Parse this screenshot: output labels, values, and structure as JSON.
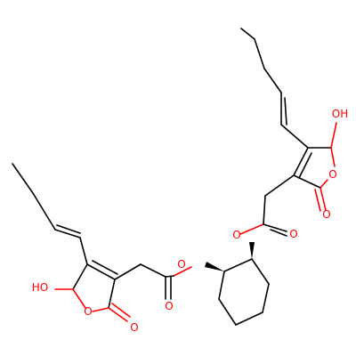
{
  "molecule": {
    "atom_labels": {
      "oh_right": "OH",
      "o_ring_right": "O",
      "o_carbonyl_right": "O",
      "o_ester_carbonyl_right": "O",
      "o_ester_right": "O",
      "o_ester_left": "O",
      "o_ester_carbonyl_left": "O",
      "oh_left": "HO",
      "o_ring_left": "O",
      "o_carbonyl_left": "O"
    },
    "colors": {
      "bond": "#000000",
      "heteroatom_oxygen": "#ff0000",
      "background": "#ffffff"
    }
  }
}
